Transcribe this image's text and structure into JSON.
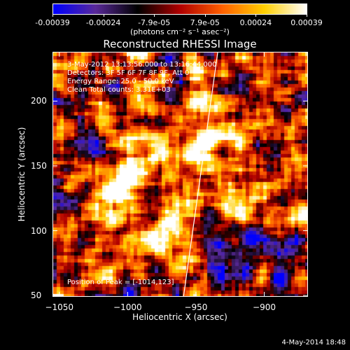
{
  "colorbar": {
    "tick_labels": [
      "-0.00039",
      "-0.00024",
      "-7.9e-05",
      "7.9e-05",
      "0.00024",
      "0.00039"
    ],
    "units": "(photons cm⁻² s⁻¹ asec⁻²)",
    "min": -0.00039,
    "max": 0.00039
  },
  "title": "Reconstructed RHESSI Image",
  "info": {
    "time_range": "3-May-2012 13:13:56.000 to 13:16:44.000",
    "detectors": "Detectors: 3F 5F 6F 7F 8F 9F, Att 0",
    "energy": "Energy Range: 25.0 - 50.0 keV",
    "clean": "Clean     Total counts: 3.31E+03"
  },
  "peak_label": "Position of Peak = [-1014,123]",
  "axes": {
    "xlabel": "Heliocentric X (arcsec)",
    "ylabel": "Heliocentric Y (arcsec)",
    "xlim": [
      -1055,
      -868
    ],
    "ylim": [
      49,
      238
    ],
    "xticks": [
      -1050,
      -1000,
      -950,
      -900
    ],
    "yticks": [
      50,
      100,
      150,
      200
    ]
  },
  "datestamp": "4-May-2014 18:48",
  "colors": {
    "background": "#000000",
    "foreground": "#ffffff",
    "colormap": [
      "#0000ff",
      "#5a2a9a",
      "#000000",
      "#b00000",
      "#ff6000",
      "#ffd000",
      "#ffffff"
    ]
  }
}
